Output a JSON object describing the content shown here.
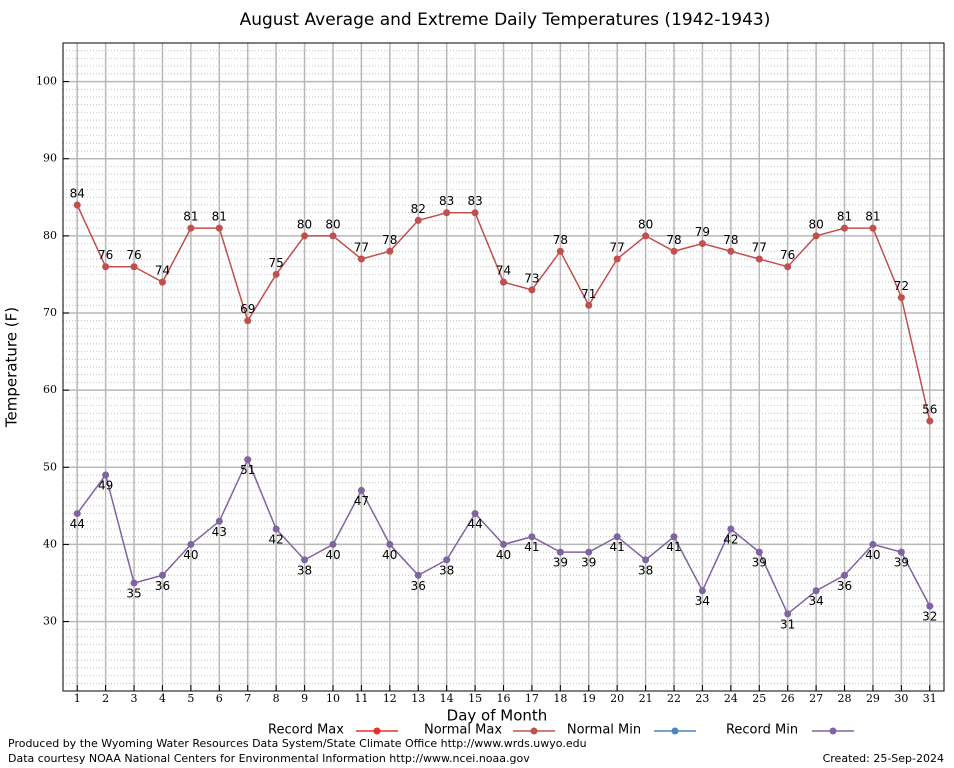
{
  "chart_data": {
    "type": "line",
    "title": "August Average and Extreme Daily Temperatures (1942-1943)",
    "xlabel": "Day of Month",
    "ylabel": "Temperature (F)",
    "x": [
      1,
      2,
      3,
      4,
      5,
      6,
      7,
      8,
      9,
      10,
      11,
      12,
      13,
      14,
      15,
      16,
      17,
      18,
      19,
      20,
      21,
      22,
      23,
      24,
      25,
      26,
      27,
      28,
      29,
      30,
      31
    ],
    "xlim": [
      0.5,
      31.5
    ],
    "xticks": [
      1,
      2,
      3,
      4,
      5,
      6,
      7,
      8,
      9,
      10,
      11,
      12,
      13,
      14,
      15,
      16,
      17,
      18,
      19,
      20,
      21,
      22,
      23,
      24,
      25,
      26,
      27,
      28,
      29,
      30,
      31
    ],
    "ylim": [
      21,
      105
    ],
    "yticks": [
      30,
      40,
      50,
      60,
      70,
      80,
      90,
      100
    ],
    "grid": true,
    "legend": "bottom",
    "series": [
      {
        "name": "Record Max",
        "color": "#e8302a",
        "values": [
          null,
          null,
          null,
          null,
          null,
          null,
          null,
          null,
          null,
          null,
          null,
          null,
          null,
          null,
          null,
          null,
          null,
          null,
          null,
          null,
          null,
          null,
          null,
          null,
          null,
          null,
          null,
          null,
          null,
          null,
          null
        ]
      },
      {
        "name": "Normal Max",
        "color": "#c0504d",
        "values": [
          84,
          76,
          76,
          74,
          81,
          81,
          69,
          75,
          80,
          80,
          77,
          78,
          82,
          83,
          83,
          74,
          73,
          78,
          71,
          77,
          80,
          78,
          79,
          78,
          77,
          76,
          80,
          81,
          81,
          72,
          56
        ]
      },
      {
        "name": "Normal Min",
        "color": "#4a87c0",
        "values": [
          null,
          null,
          null,
          null,
          null,
          null,
          null,
          null,
          null,
          null,
          null,
          null,
          null,
          null,
          null,
          null,
          null,
          null,
          null,
          null,
          null,
          null,
          null,
          null,
          null,
          null,
          null,
          null,
          null,
          null,
          null
        ]
      },
      {
        "name": "Record Min",
        "color": "#8064a2",
        "values": [
          44,
          49,
          35,
          36,
          40,
          43,
          51,
          42,
          38,
          40,
          47,
          40,
          36,
          38,
          44,
          40,
          41,
          39,
          39,
          41,
          38,
          41,
          34,
          42,
          39,
          31,
          34,
          36,
          40,
          39,
          32
        ]
      }
    ],
    "footer": {
      "produced": "Produced by the Wyoming Water Resources Data System/State Climate Office http://www.wrds.uwyo.edu",
      "courtesy": "Data courtesy NOAA National Centers for Environmental Information http://www.ncei.noaa.gov",
      "created": "Created:  25-Sep-2024"
    }
  }
}
